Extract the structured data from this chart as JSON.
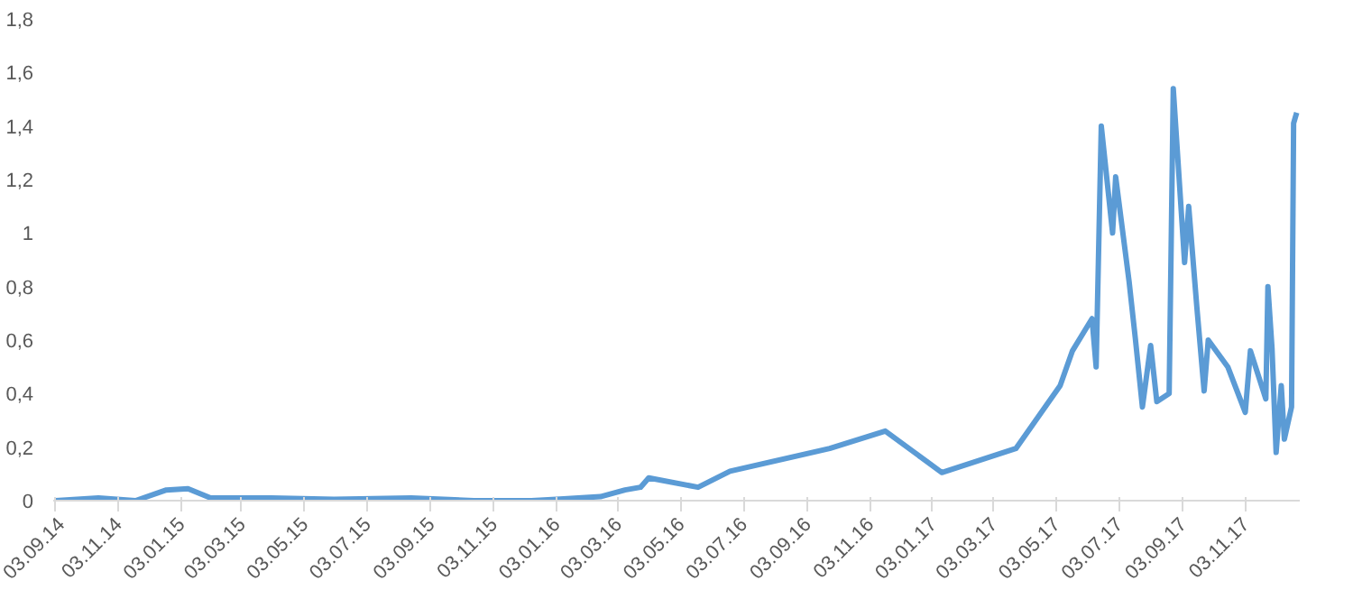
{
  "chart_data": {
    "type": "line",
    "x": [
      "2014-09-03",
      "2014-10-15",
      "2014-11-20",
      "2014-12-20",
      "2015-01-10",
      "2015-02-01",
      "2015-04-01",
      "2015-06-01",
      "2015-08-15",
      "2015-10-15",
      "2015-12-10",
      "2016-01-03",
      "2016-02-15",
      "2016-03-10",
      "2016-03-25",
      "2016-04-02",
      "2016-05-20",
      "2016-06-20",
      "2016-09-25",
      "2016-11-18",
      "2017-01-12",
      "2017-03-25",
      "2017-05-07",
      "2017-05-19",
      "2017-06-07",
      "2017-06-11",
      "2017-06-16",
      "2017-06-27",
      "2017-06-30",
      "2017-07-13",
      "2017-07-19",
      "2017-07-26",
      "2017-08-03",
      "2017-08-09",
      "2017-08-21",
      "2017-08-25",
      "2017-09-05",
      "2017-09-09",
      "2017-09-17",
      "2017-09-24",
      "2017-09-28",
      "2017-10-17",
      "2017-11-03",
      "2017-11-08",
      "2017-11-23",
      "2017-11-25",
      "2017-11-29",
      "2017-12-03",
      "2017-12-08",
      "2017-12-11",
      "2017-12-18",
      "2017-12-20",
      "2017-12-23"
    ],
    "series": [
      {
        "color": "#5b9bd5",
        "values": [
          0.0,
          0.01,
          0.0,
          0.04,
          0.045,
          0.01,
          0.01,
          0.005,
          0.01,
          0.0,
          0.0,
          0.005,
          0.015,
          0.04,
          0.05,
          0.085,
          0.05,
          0.11,
          0.195,
          0.26,
          0.105,
          0.195,
          0.43,
          0.56,
          0.68,
          0.5,
          1.4,
          1.0,
          1.21,
          0.82,
          0.61,
          0.35,
          0.58,
          0.37,
          0.4,
          1.54,
          0.89,
          1.1,
          0.72,
          0.41,
          0.6,
          0.5,
          0.33,
          0.56,
          0.38,
          0.8,
          0.57,
          0.18,
          0.43,
          0.23,
          0.35,
          1.41,
          1.45
        ]
      }
    ],
    "xlim": [
      "2014-09-01",
      "2017-12-26"
    ],
    "xticks": [
      {
        "value": "2014-09-03",
        "label": "03.09.14"
      },
      {
        "value": "2014-11-03",
        "label": "03.11.14"
      },
      {
        "value": "2015-01-03",
        "label": "03.01.15"
      },
      {
        "value": "2015-03-03",
        "label": "03.03.15"
      },
      {
        "value": "2015-05-03",
        "label": "03.05.15"
      },
      {
        "value": "2015-07-03",
        "label": "03.07.15"
      },
      {
        "value": "2015-09-03",
        "label": "03.09.15"
      },
      {
        "value": "2015-11-03",
        "label": "03.11.15"
      },
      {
        "value": "2016-01-03",
        "label": "03.01.16"
      },
      {
        "value": "2016-03-03",
        "label": "03.03.16"
      },
      {
        "value": "2016-05-03",
        "label": "03.05.16"
      },
      {
        "value": "2016-07-03",
        "label": "03.07.16"
      },
      {
        "value": "2016-09-03",
        "label": "03.09.16"
      },
      {
        "value": "2016-11-03",
        "label": "03.11.16"
      },
      {
        "value": "2017-01-03",
        "label": "03.01.17"
      },
      {
        "value": "2017-03-03",
        "label": "03.03.17"
      },
      {
        "value": "2017-05-03",
        "label": "03.05.17"
      },
      {
        "value": "2017-07-03",
        "label": "03.07.17"
      },
      {
        "value": "2017-09-03",
        "label": "03.09.17"
      },
      {
        "value": "2017-11-03",
        "label": "03.11.17"
      }
    ],
    "ylim": [
      0,
      1.8
    ],
    "yticks": [
      0,
      {
        "value": 0.2,
        "label": "0,2"
      },
      {
        "value": 0.4,
        "label": "0,4"
      },
      {
        "value": 0.6,
        "label": "0,6"
      },
      {
        "value": 0.8,
        "label": "0,8"
      },
      1,
      {
        "value": 1.2,
        "label": "1,2"
      },
      {
        "value": 1.4,
        "label": "1,4"
      },
      {
        "value": 1.6,
        "label": "1,6"
      },
      {
        "value": 1.8,
        "label": "1,8"
      }
    ],
    "grid": false
  }
}
